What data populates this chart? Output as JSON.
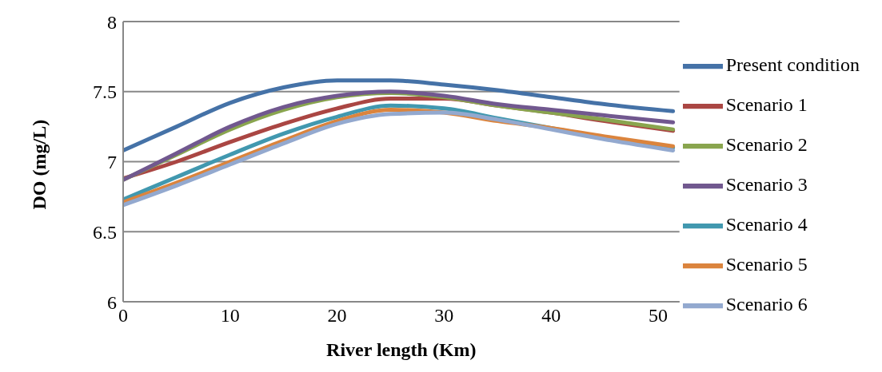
{
  "chart_data": {
    "type": "line",
    "xlabel": "River length (Km)",
    "ylabel": "DO (mg/L)",
    "x": [
      0,
      5,
      10,
      15,
      20,
      25,
      30,
      35,
      40,
      45,
      51.4
    ],
    "xlim": [
      0,
      52
    ],
    "xticks": [
      0,
      10,
      20,
      30,
      40,
      50
    ],
    "ylim": [
      6,
      8
    ],
    "yticks": [
      6,
      6.5,
      7,
      7.5,
      8
    ],
    "grid": "y",
    "legend": "right",
    "marker": "none",
    "line_style": "solid",
    "series": [
      {
        "name": "Present condition",
        "color": "#4572a7",
        "values": [
          7.08,
          7.25,
          7.42,
          7.53,
          7.58,
          7.58,
          7.55,
          7.51,
          7.46,
          7.41,
          7.36
        ]
      },
      {
        "name": "Scenario 1",
        "color": "#aa4643",
        "values": [
          6.88,
          7.0,
          7.14,
          7.27,
          7.38,
          7.45,
          7.45,
          7.4,
          7.35,
          7.29,
          7.22
        ]
      },
      {
        "name": "Scenario 2",
        "color": "#89a54e",
        "values": [
          6.87,
          7.05,
          7.23,
          7.37,
          7.46,
          7.49,
          7.46,
          7.4,
          7.35,
          7.3,
          7.23
        ]
      },
      {
        "name": "Scenario 3",
        "color": "#71588f",
        "values": [
          6.87,
          7.06,
          7.25,
          7.39,
          7.47,
          7.5,
          7.47,
          7.41,
          7.37,
          7.33,
          7.28
        ]
      },
      {
        "name": "Scenario 4",
        "color": "#4198af",
        "values": [
          6.73,
          6.89,
          7.05,
          7.2,
          7.32,
          7.4,
          7.38,
          7.31,
          7.24,
          7.17,
          7.1
        ]
      },
      {
        "name": "Scenario 5",
        "color": "#db843d",
        "values": [
          6.71,
          6.85,
          7.0,
          7.15,
          7.29,
          7.37,
          7.35,
          7.29,
          7.24,
          7.18,
          7.11
        ]
      },
      {
        "name": "Scenario 6",
        "color": "#93a9cf",
        "values": [
          6.69,
          6.83,
          6.98,
          7.13,
          7.27,
          7.34,
          7.35,
          7.3,
          7.23,
          7.16,
          7.08
        ]
      }
    ]
  }
}
